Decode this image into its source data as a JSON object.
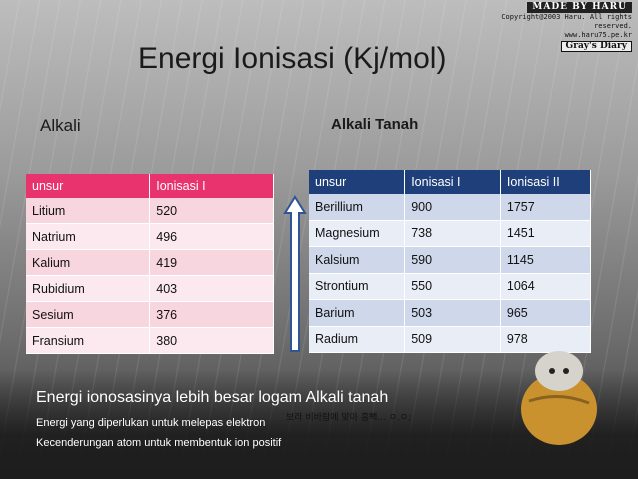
{
  "watermark": {
    "made_by": "MADE BY HARU",
    "copyright": "Copyright@2003 Haru. All rights reserved.",
    "site": "www.haru75.pe.kr",
    "diary": "Gray's Diary",
    "korean_caption": "보라 비바람에 맞아 흠뻑... ㅇ.ㅇ;"
  },
  "title": "Energi Ionisasi (Kj/mol)",
  "alkali": {
    "label": "Alkali",
    "headers": [
      "unsur",
      "Ionisasi I"
    ],
    "rows": [
      [
        "Litium",
        "520"
      ],
      [
        "Natrium",
        "496"
      ],
      [
        "Kalium",
        "419"
      ],
      [
        "Rubidium",
        "403"
      ],
      [
        "Sesium",
        "376"
      ],
      [
        "Fransium",
        "380"
      ]
    ]
  },
  "alkali_tanah": {
    "label": "Alkali Tanah",
    "headers": [
      "unsur",
      "Ionisasi I",
      "Ionisasi II"
    ],
    "rows": [
      [
        "Berillium",
        "900",
        "1757"
      ],
      [
        "Magnesium",
        "738",
        "1451"
      ],
      [
        "Kalsium",
        "590",
        "1145"
      ],
      [
        "Strontium",
        "550",
        "1064"
      ],
      [
        "Barium",
        "503",
        "965"
      ],
      [
        "Radium",
        "509",
        "978"
      ]
    ]
  },
  "notes": {
    "line1": "Energi ionosasinya lebih besar logam Alkali tanah",
    "line2": "Energi yang diperlukan untuk melepas elektron",
    "line3": "Kecenderungan atom untuk membentuk ion positif"
  },
  "colors": {
    "alkali_header": "#e8336e",
    "tanah_header": "#1f3f7a",
    "arrow": "#2f5597"
  }
}
